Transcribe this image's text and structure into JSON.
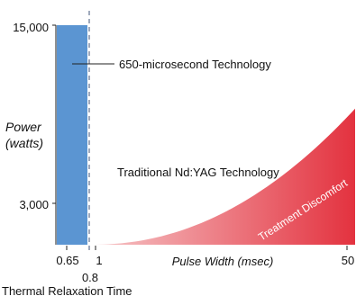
{
  "chart_data": {
    "type": "bar",
    "title": "",
    "xlabel": "Pulse Width (msec)",
    "ylabel": "Power\n(watts)",
    "ylim": [
      0,
      15000
    ],
    "y_ticks": [
      "15,000",
      "3,000"
    ],
    "x_ticks": [
      "0.65",
      "1",
      "50"
    ],
    "marker": {
      "label": "0.8",
      "x": 0.8,
      "caption": "Thermal Relaxation Time"
    },
    "bar": {
      "name": "650-microsecond Technology",
      "x": 0.65,
      "value": 15000,
      "color": "#5b95d2"
    },
    "area": {
      "name": "Traditional Nd:YAG Technology",
      "x": [
        1,
        50
      ],
      "values": [
        0,
        9300
      ],
      "color_from": "#f6c6c8",
      "color_to": "#e3323f",
      "annotation": "Treatment Discomfort"
    },
    "grid": false,
    "legend": "none"
  }
}
